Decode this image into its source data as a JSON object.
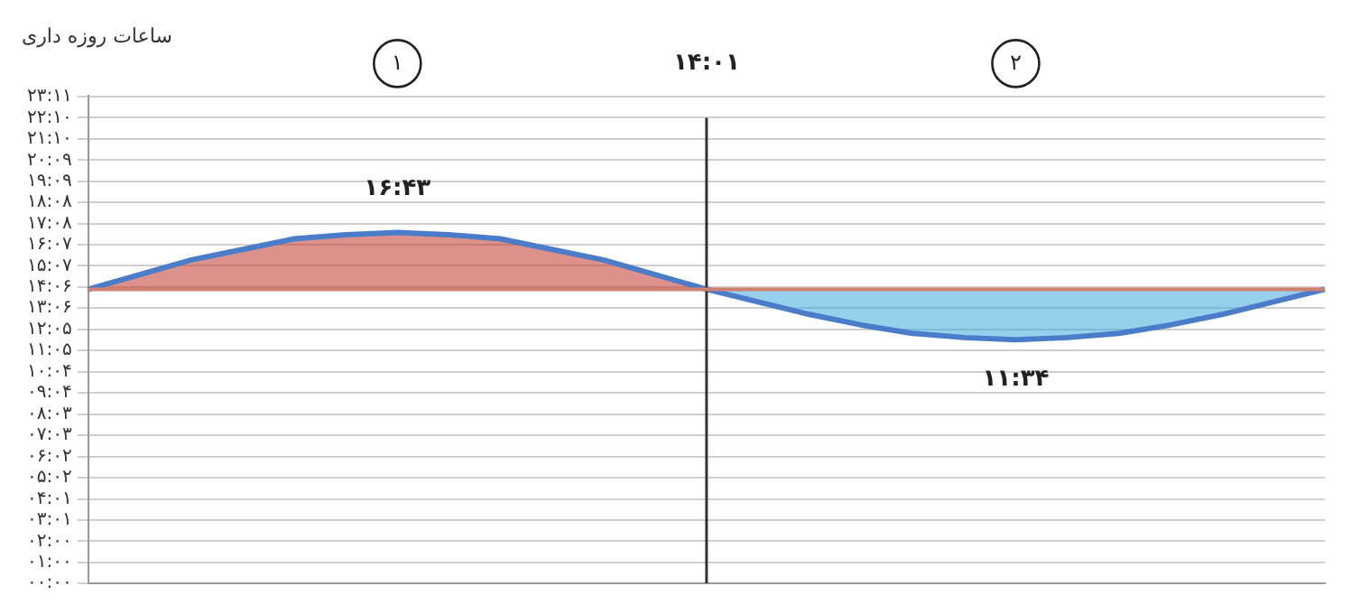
{
  "chart_data": {
    "type": "line",
    "ylabel": "ساعات روزه داری",
    "categories": [
      null,
      null,
      null,
      null,
      null,
      null,
      null,
      null,
      null,
      null,
      null,
      null,
      null,
      null,
      null,
      null,
      null,
      null,
      null,
      null,
      null,
      null,
      null,
      null,
      null
    ],
    "ylim": [
      0,
      23.2
    ],
    "yticks": [
      {
        "value": 0,
        "label": "۰۰:۰۰"
      },
      {
        "value": 1,
        "label": "۰۱:۰۰"
      },
      {
        "value": 2,
        "label": "۰۲:۰۰"
      },
      {
        "value": 3.017,
        "label": "۰۳:۰۱"
      },
      {
        "value": 4.017,
        "label": "۰۴:۰۱"
      },
      {
        "value": 5.033,
        "label": "۰۵:۰۲"
      },
      {
        "value": 6.033,
        "label": "۰۶:۰۲"
      },
      {
        "value": 7.05,
        "label": "۰۷:۰۳"
      },
      {
        "value": 8.05,
        "label": "۰۸:۰۳"
      },
      {
        "value": 9.067,
        "label": "۰۹:۰۴"
      },
      {
        "value": 10.067,
        "label": "۱۰:۰۴"
      },
      {
        "value": 11.083,
        "label": "۱۱:۰۵"
      },
      {
        "value": 12.083,
        "label": "۱۲:۰۵"
      },
      {
        "value": 13.1,
        "label": "۱۳:۰۶"
      },
      {
        "value": 14.1,
        "label": "۱۴:۰۶"
      },
      {
        "value": 15.117,
        "label": "۱۵:۰۷"
      },
      {
        "value": 16.117,
        "label": "۱۶:۰۷"
      },
      {
        "value": 17.133,
        "label": "۱۷:۰۸"
      },
      {
        "value": 18.133,
        "label": "۱۸:۰۸"
      },
      {
        "value": 19.15,
        "label": "۱۹:۰۹"
      },
      {
        "value": 20.15,
        "label": "۲۰:۰۹"
      },
      {
        "value": 21.167,
        "label": "۲۱:۱۰"
      },
      {
        "value": 22.167,
        "label": "۲۲:۱۰"
      },
      {
        "value": 23.183,
        "label": "۲۳:۱۱"
      }
    ],
    "tick_labels": "y",
    "grid": "y",
    "legend": false,
    "marker": "none",
    "series": [
      {
        "color": "#4a7cc9",
        "values": [
          14.0,
          14.7,
          15.4,
          15.9,
          16.4,
          16.6,
          16.7,
          16.6,
          16.4,
          15.9,
          15.4,
          14.7,
          14.0,
          13.4,
          12.8,
          12.3,
          11.9,
          11.7,
          11.6,
          11.7,
          11.9,
          12.3,
          12.8,
          13.4,
          14.0
        ]
      },
      {
        "type": "area",
        "color": "#c0392b",
        "values": [
          14.0,
          14.7,
          15.4,
          15.9,
          16.4,
          16.6,
          16.7,
          16.6,
          16.4,
          15.9,
          15.4,
          14.7,
          14.0,
          null,
          null,
          null,
          null,
          null,
          null,
          null,
          null,
          null,
          null,
          null,
          null
        ]
      },
      {
        "type": "area",
        "color": "#3fa9dc",
        "values": [
          null,
          null,
          null,
          null,
          null,
          null,
          null,
          null,
          null,
          null,
          null,
          null,
          14.0,
          13.4,
          12.8,
          12.3,
          11.9,
          11.7,
          11.6,
          11.7,
          11.9,
          12.3,
          12.8,
          13.4,
          14.0
        ]
      }
    ],
    "ref_lines": [
      {
        "axis": "y",
        "value": 14.0,
        "color": "#d08070"
      }
    ],
    "annotations": [
      "۱",
      "۱۴:۰۱",
      "۲",
      {
        "text": "۱۶:۴۳",
        "y": 16.7
      },
      {
        "text": "۱۱:۳۴",
        "y": 11.6
      }
    ]
  }
}
